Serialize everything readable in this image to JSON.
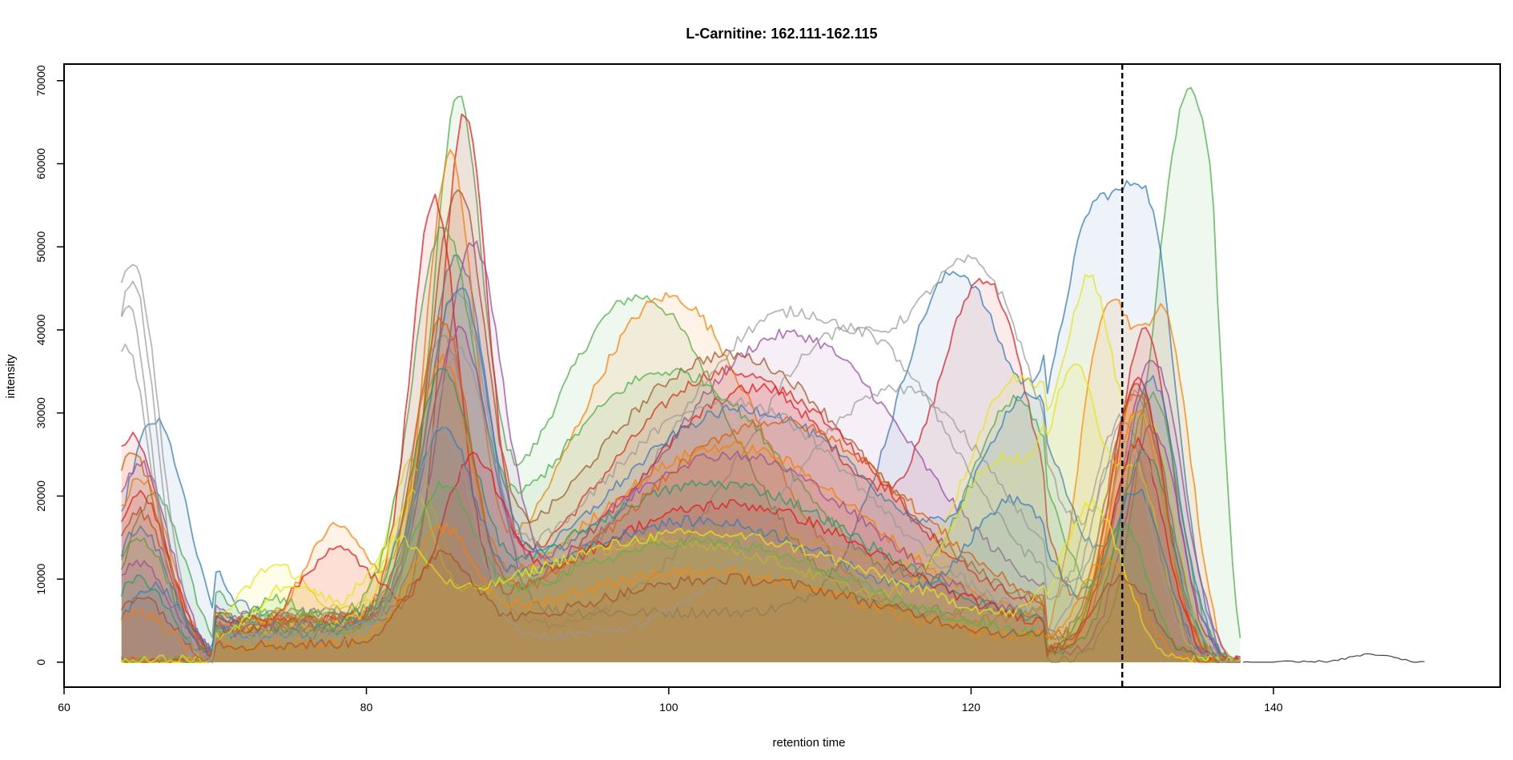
{
  "chart_data": {
    "type": "area",
    "title": "L-Carnitine: 162.111-162.115",
    "xlabel": "retention time",
    "ylabel": "intensity",
    "xlim": [
      60,
      155
    ],
    "ylim": [
      -3000,
      72000
    ],
    "xticks": [
      60,
      80,
      100,
      120,
      140
    ],
    "yticks": [
      0,
      10000,
      20000,
      30000,
      40000,
      50000,
      60000,
      70000
    ],
    "xtick_labels": [
      "60",
      "80",
      "100",
      "120",
      "140"
    ],
    "ytick_labels": [
      "0",
      "10000",
      "20000",
      "30000",
      "40000",
      "50000",
      "60000",
      "70000"
    ],
    "grid": false,
    "legend": "none",
    "vline": {
      "x": 130,
      "style": "dashed",
      "color": "#000000"
    },
    "x_range_of_traces": [
      63.8,
      150
    ],
    "palette": [
      "#e41a1c",
      "#377eb8",
      "#4daf4a",
      "#984ea3",
      "#ff7f00",
      "#e6e619",
      "#a65628",
      "#999999",
      "#d95f02",
      "#1b9e77"
    ],
    "series": [
      {
        "color": "#4daf4a",
        "fill": true,
        "peaks": [
          [
            66,
            20000,
            2
          ],
          [
            86,
            57000,
            1.6
          ],
          [
            98,
            38000,
            6
          ],
          [
            134.5,
            69000,
            2.4
          ]
        ],
        "baseline": 6000
      },
      {
        "color": "#e41a1c",
        "fill": true,
        "peaks": [
          [
            64.5,
            27000,
            2
          ],
          [
            86.5,
            58500,
            1.5
          ],
          [
            104,
            30000,
            8
          ],
          [
            121,
            38000,
            3
          ],
          [
            131.5,
            40000,
            1.8
          ]
        ],
        "baseline": 5000
      },
      {
        "color": "#377eb8",
        "fill": true,
        "peaks": [
          [
            66,
            29000,
            2.2
          ],
          [
            86,
            43000,
            2
          ],
          [
            119,
            41000,
            4
          ],
          [
            128,
            48000,
            2.2
          ],
          [
            132,
            45000,
            1.8
          ]
        ],
        "baseline": 6000
      },
      {
        "color": "#ff7f00",
        "fill": true,
        "peaks": [
          [
            65,
            22000,
            2
          ],
          [
            85.5,
            54000,
            1.6
          ],
          [
            100,
            39000,
            6
          ],
          [
            129,
            42000,
            1.8
          ],
          [
            133,
            38000,
            1.6
          ]
        ],
        "baseline": 5000
      },
      {
        "color": "#984ea3",
        "fill": true,
        "peaks": [
          [
            65,
            24000,
            2
          ],
          [
            87,
            44000,
            2
          ],
          [
            108,
            34000,
            8
          ],
          [
            132,
            36000,
            2
          ]
        ],
        "baseline": 5500
      },
      {
        "color": "#a65628",
        "fill": true,
        "peaks": [
          [
            65,
            18000,
            2
          ],
          [
            86,
            48000,
            1.8
          ],
          [
            104,
            32000,
            9
          ],
          [
            131,
            33000,
            2
          ]
        ],
        "baseline": 5000
      },
      {
        "color": "#e6e619",
        "fill": true,
        "peaks": [
          [
            74,
            7000,
            2
          ],
          [
            83,
            17000,
            1.5
          ],
          [
            103,
            12000,
            12
          ],
          [
            123,
            27000,
            3
          ],
          [
            128,
            37000,
            1.6
          ],
          [
            132,
            26000,
            1.6
          ]
        ],
        "baseline": 4000
      },
      {
        "color": "#999999",
        "fill": false,
        "peaks": [
          [
            64.5,
            48500,
            1.8
          ],
          [
            86,
            40000,
            2
          ],
          [
            108,
            38000,
            8
          ],
          [
            121,
            33000,
            4
          ],
          [
            131,
            30000,
            2
          ]
        ],
        "baseline": 4000
      },
      {
        "color": "#999999",
        "fill": false,
        "peaks": [
          [
            64,
            38000,
            1.8
          ],
          [
            85,
            35000,
            2
          ],
          [
            112,
            36000,
            7
          ],
          [
            130,
            28000,
            2
          ]
        ],
        "baseline": 4000
      },
      {
        "color": "#4daf4a",
        "fill": true,
        "peaks": [
          [
            65,
            15000,
            2
          ],
          [
            85,
            42000,
            2
          ],
          [
            100,
            30000,
            8
          ],
          [
            123,
            26000,
            3
          ],
          [
            132,
            32000,
            1.8
          ]
        ],
        "baseline": 5000
      },
      {
        "color": "#e41a1c",
        "fill": true,
        "peaks": [
          [
            65,
            20000,
            2
          ],
          [
            84.5,
            50000,
            1.6
          ],
          [
            106,
            28000,
            8
          ],
          [
            131,
            34000,
            1.8
          ]
        ],
        "baseline": 5000
      },
      {
        "color": "#377eb8",
        "fill": true,
        "peaks": [
          [
            65,
            16000,
            2
          ],
          [
            86,
            38000,
            2
          ],
          [
            105,
            26000,
            9
          ],
          [
            124,
            25000,
            3
          ],
          [
            132,
            33000,
            1.8
          ]
        ],
        "baseline": 4500
      },
      {
        "color": "#ff7f00",
        "fill": true,
        "peaks": [
          [
            78,
            12000,
            2
          ],
          [
            85,
            30000,
            1.8
          ],
          [
            104,
            22000,
            9
          ],
          [
            131,
            30000,
            1.8
          ]
        ],
        "baseline": 4000
      },
      {
        "color": "#e6e619",
        "fill": true,
        "peaks": [
          [
            83,
            14000,
            1.5
          ],
          [
            100,
            11000,
            10
          ],
          [
            122,
            20000,
            3
          ],
          [
            127,
            30000,
            1.6
          ],
          [
            131,
            22000,
            1.6
          ]
        ],
        "baseline": 3500
      },
      {
        "color": "#984ea3",
        "fill": true,
        "peaks": [
          [
            65,
            12000,
            2
          ],
          [
            86,
            33000,
            2
          ],
          [
            104,
            21000,
            9
          ],
          [
            132,
            28000,
            1.8
          ]
        ],
        "baseline": 4000
      },
      {
        "color": "#1b9e77",
        "fill": true,
        "peaks": [
          [
            65,
            10000,
            2
          ],
          [
            85,
            28000,
            2
          ],
          [
            103,
            18000,
            10
          ],
          [
            131.5,
            25000,
            1.8
          ]
        ],
        "baseline": 3500
      },
      {
        "color": "#d95f02",
        "fill": true,
        "peaks": [
          [
            64.5,
            25000,
            2
          ],
          [
            85,
            36000,
            1.8
          ],
          [
            107,
            25000,
            9
          ],
          [
            131,
            32000,
            1.8
          ]
        ],
        "baseline": 4000
      },
      {
        "color": "#e41a1c",
        "fill": true,
        "peaks": [
          [
            78,
            10000,
            2.5
          ],
          [
            87,
            18000,
            2
          ],
          [
            104,
            16000,
            10
          ],
          [
            131,
            26000,
            1.8
          ]
        ],
        "baseline": 3000
      },
      {
        "color": "#377eb8",
        "fill": true,
        "peaks": [
          [
            66,
            9000,
            2
          ],
          [
            85,
            22000,
            2
          ],
          [
            102,
            14000,
            10
          ],
          [
            123,
            15000,
            3
          ],
          [
            131,
            20000,
            1.8
          ]
        ],
        "baseline": 3000
      },
      {
        "color": "#4daf4a",
        "fill": true,
        "peaks": [
          [
            74,
            5000,
            2
          ],
          [
            85,
            16000,
            2
          ],
          [
            102,
            12000,
            10
          ],
          [
            130,
            16000,
            1.8
          ]
        ],
        "baseline": 2500
      },
      {
        "color": "#ff7f00",
        "fill": true,
        "peaks": [
          [
            65,
            6000,
            2
          ],
          [
            85,
            12000,
            2
          ],
          [
            102,
            9000,
            10
          ],
          [
            129,
            12000,
            2
          ]
        ],
        "baseline": 2000
      },
      {
        "color": "#e6e619",
        "fill": true,
        "peaks": [
          [
            75,
            6000,
            2
          ],
          [
            82,
            9000,
            2
          ],
          [
            102,
            13000,
            12
          ],
          [
            128,
            18000,
            2
          ]
        ],
        "baseline": 2500
      },
      {
        "color": "#a65628",
        "fill": true,
        "peaks": [
          [
            65,
            8000,
            2
          ],
          [
            85,
            10000,
            2
          ],
          [
            104,
            8000,
            10
          ],
          [
            130,
            10000,
            2
          ]
        ],
        "baseline": 2000
      },
      {
        "color": "#999999",
        "fill": false,
        "peaks": [
          [
            64.5,
            46000,
            1.6
          ],
          [
            86,
            30000,
            2
          ],
          [
            104,
            28000,
            9
          ],
          [
            130,
            26000,
            2
          ]
        ],
        "baseline": 3500
      },
      {
        "color": "#999999",
        "fill": false,
        "peaks": [
          [
            64.2,
            43000,
            1.6
          ],
          [
            85,
            25000,
            2
          ],
          [
            115,
            30000,
            7
          ],
          [
            131,
            24000,
            2
          ]
        ],
        "baseline": 3000
      },
      {
        "color": "#000000",
        "fill": false,
        "range": [
          138,
          150
        ],
        "peaks": [
          [
            146.5,
            900,
            1.5
          ]
        ],
        "baseline": 300
      }
    ]
  }
}
